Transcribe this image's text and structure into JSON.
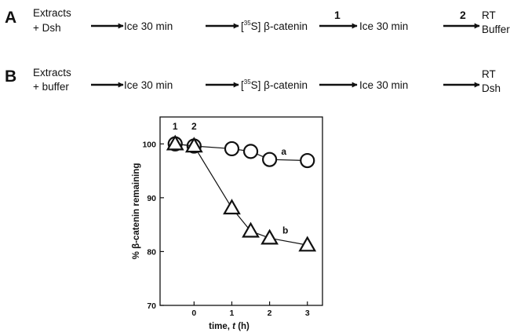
{
  "panel_a": {
    "letter": "A",
    "start_line1": "Extracts",
    "start_line2": "+ Dsh",
    "step1": "Ice 30 min",
    "step2_prefix": "[",
    "step2_sup": "35",
    "step2_suffix": "S] β-catenin",
    "step3": "Ice 30 min",
    "end_line1": "RT",
    "end_line2": "Buffer",
    "arrow3_label": "1",
    "arrow4_label": "2"
  },
  "panel_b": {
    "letter": "B",
    "start_line1": "Extracts",
    "start_line2": "+ buffer",
    "step1": "Ice 30 min",
    "step2_prefix": "[",
    "step2_sup": "35",
    "step2_suffix": "S] β-catenin",
    "step3": "Ice 30 min",
    "end_line1": "RT",
    "end_line2": "Dsh"
  },
  "chart_data": {
    "type": "scatter",
    "ylabel_prefix": "% ",
    "ylabel_main": "β-catenin remaining",
    "xlabel_prefix": "time, ",
    "xlabel_var": "t",
    "xlabel_suffix": " (h)",
    "xlim": [
      -0.9,
      3.4
    ],
    "ylim": [
      70,
      105
    ],
    "xticks": [
      0,
      1,
      2,
      3
    ],
    "yticks": [
      70,
      80,
      90,
      100
    ],
    "time_markers": [
      {
        "label": "1",
        "x": -0.5
      },
      {
        "label": "2",
        "x": 0
      }
    ],
    "series": [
      {
        "label": "a",
        "marker": "circle",
        "x": [
          -0.5,
          0,
          1,
          1.5,
          2,
          3
        ],
        "y": [
          100,
          99.6,
          99.1,
          98.6,
          97.1,
          96.9
        ]
      },
      {
        "label": "b",
        "marker": "triangle",
        "x": [
          -0.5,
          0,
          1,
          1.5,
          2,
          3
        ],
        "y": [
          100,
          99.6,
          88.1,
          83.8,
          82.5,
          81.2
        ]
      }
    ]
  },
  "colors": {
    "ink": "#111111",
    "marker_fill": "#ffffff"
  }
}
